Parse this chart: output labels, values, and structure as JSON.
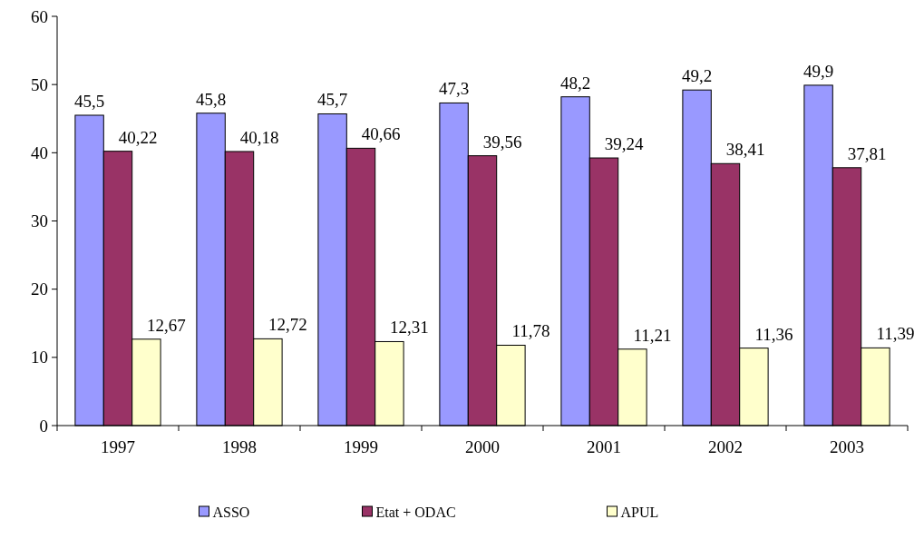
{
  "chart_data": {
    "type": "bar",
    "categories": [
      "1997",
      "1998",
      "1999",
      "2000",
      "2001",
      "2002",
      "2003"
    ],
    "series": [
      {
        "name": "ASSO",
        "color": "#9999ff",
        "values": [
          45.5,
          45.8,
          45.7,
          47.3,
          48.2,
          49.2,
          49.9
        ],
        "value_labels": [
          "45,5",
          "45,8",
          "45,7",
          "47,3",
          "48,2",
          "49,2",
          "49,9"
        ]
      },
      {
        "name": "Etat + ODAC",
        "color": "#993366",
        "values": [
          40.22,
          40.18,
          40.66,
          39.56,
          39.24,
          38.41,
          37.81
        ],
        "value_labels": [
          "40,22",
          "40,18",
          "40,66",
          "39,56",
          "39,24",
          "38,41",
          "37,81"
        ]
      },
      {
        "name": "APUL",
        "color": "#ffffcc",
        "values": [
          12.67,
          12.72,
          12.31,
          11.78,
          11.21,
          11.36,
          11.39
        ],
        "value_labels": [
          "12,67",
          "12,72",
          "12,31",
          "11,78",
          "11,21",
          "11,36",
          "11,39"
        ]
      }
    ],
    "ylim": [
      0,
      60
    ],
    "yticks": [
      0,
      10,
      20,
      30,
      40,
      50,
      60
    ],
    "grid": false,
    "legend": "bottom"
  }
}
